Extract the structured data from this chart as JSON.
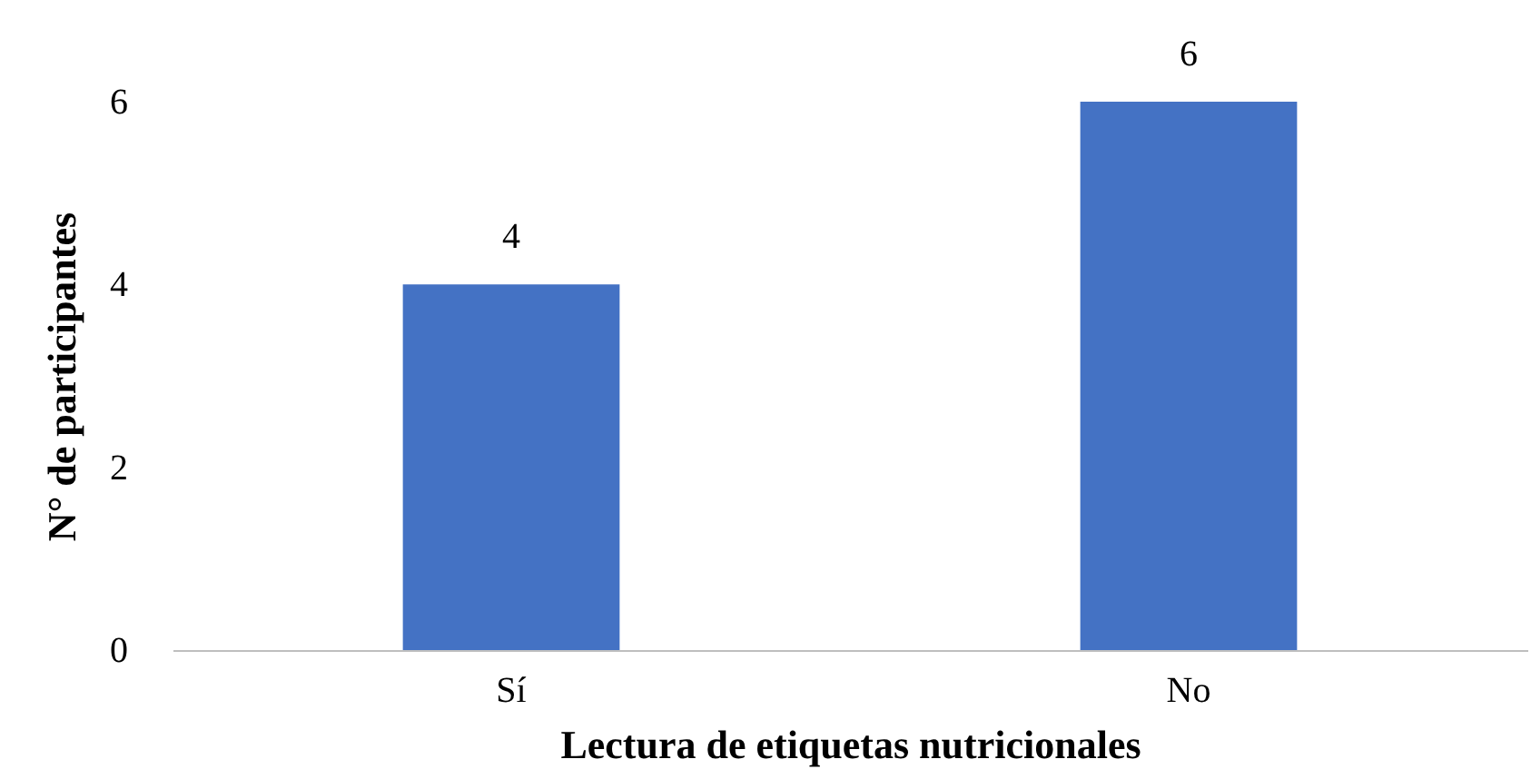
{
  "chart_data": {
    "type": "bar",
    "xlabel": "Lectura de etiquetas nutricionales",
    "ylabel": "N° de participantes",
    "categories": [
      "Sí",
      "No"
    ],
    "values": [
      4,
      6
    ],
    "color": "#4472c4",
    "ylim": [
      0,
      6
    ],
    "yticks": [
      0,
      2,
      4,
      6
    ],
    "grid": false,
    "data_labels": true
  }
}
